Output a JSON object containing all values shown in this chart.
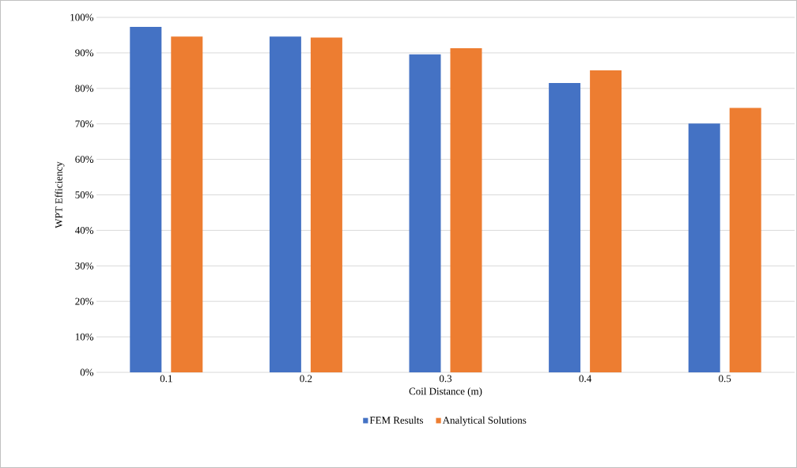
{
  "chart_data": {
    "type": "bar",
    "xlabel": "Coil Distance (m)",
    "ylabel": "WPT Efficiency",
    "categories": [
      "0.1",
      "0.2",
      "0.3",
      "0.4",
      "0.5"
    ],
    "series": [
      {
        "name": "FEM Results",
        "color": "#4472c4",
        "values": [
          97.3,
          94.6,
          89.6,
          81.5,
          70.1
        ]
      },
      {
        "name": "Analytical Solutions",
        "color": "#ed7d31",
        "values": [
          94.6,
          94.3,
          91.3,
          85.1,
          74.5
        ]
      }
    ],
    "ylim": [
      0,
      100
    ],
    "yticks": [
      {
        "value": 0,
        "label": "0%"
      },
      {
        "value": 10,
        "label": "10%"
      },
      {
        "value": 20,
        "label": "20%"
      },
      {
        "value": 30,
        "label": "30%"
      },
      {
        "value": 40,
        "label": "40%"
      },
      {
        "value": 50,
        "label": "50%"
      },
      {
        "value": 60,
        "label": "60%"
      },
      {
        "value": 70,
        "label": "70%"
      },
      {
        "value": 80,
        "label": "80%"
      },
      {
        "value": 90,
        "label": "90%"
      },
      {
        "value": 100,
        "label": "100%"
      }
    ],
    "grid": "y",
    "legend": "bottom"
  }
}
